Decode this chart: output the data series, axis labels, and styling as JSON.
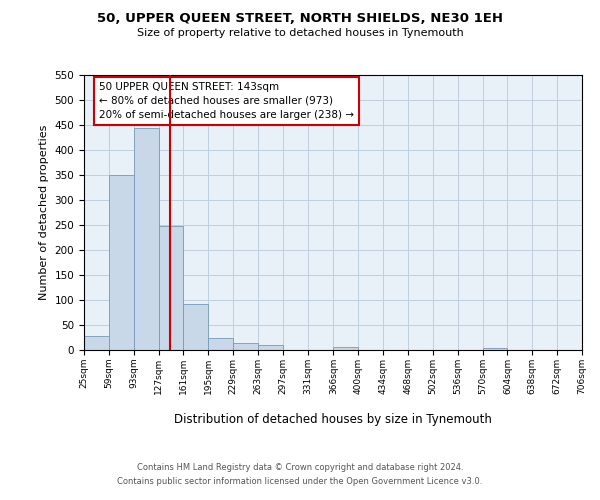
{
  "title": "50, UPPER QUEEN STREET, NORTH SHIELDS, NE30 1EH",
  "subtitle": "Size of property relative to detached houses in Tynemouth",
  "xlabel": "Distribution of detached houses by size in Tynemouth",
  "ylabel": "Number of detached properties",
  "bar_color": "#c8d8e8",
  "bar_edge_color": "#7799bb",
  "background_color": "#ffffff",
  "grid_color": "#c0d0e0",
  "annotation_text": "50 UPPER QUEEN STREET: 143sqm\n← 80% of detached houses are smaller (973)\n20% of semi-detached houses are larger (238) →",
  "vline_x": 143,
  "vline_color": "#cc0000",
  "annotation_box_color": "#cc0000",
  "bin_edges": [
    25,
    59,
    93,
    127,
    161,
    195,
    229,
    263,
    297,
    331,
    366,
    400,
    434,
    468,
    502,
    536,
    570,
    604,
    638,
    672,
    706
  ],
  "bin_values": [
    29,
    350,
    443,
    248,
    93,
    25,
    15,
    10,
    0,
    0,
    7,
    0,
    0,
    0,
    0,
    0,
    5,
    0,
    0,
    0
  ],
  "tick_labels": [
    "25sqm",
    "59sqm",
    "93sqm",
    "127sqm",
    "161sqm",
    "195sqm",
    "229sqm",
    "263sqm",
    "297sqm",
    "331sqm",
    "366sqm",
    "400sqm",
    "434sqm",
    "468sqm",
    "502sqm",
    "536sqm",
    "570sqm",
    "604sqm",
    "638sqm",
    "672sqm",
    "706sqm"
  ],
  "ylim": [
    0,
    550
  ],
  "yticks": [
    0,
    50,
    100,
    150,
    200,
    250,
    300,
    350,
    400,
    450,
    500,
    550
  ],
  "footer_line1": "Contains HM Land Registry data © Crown copyright and database right 2024.",
  "footer_line2": "Contains public sector information licensed under the Open Government Licence v3.0."
}
